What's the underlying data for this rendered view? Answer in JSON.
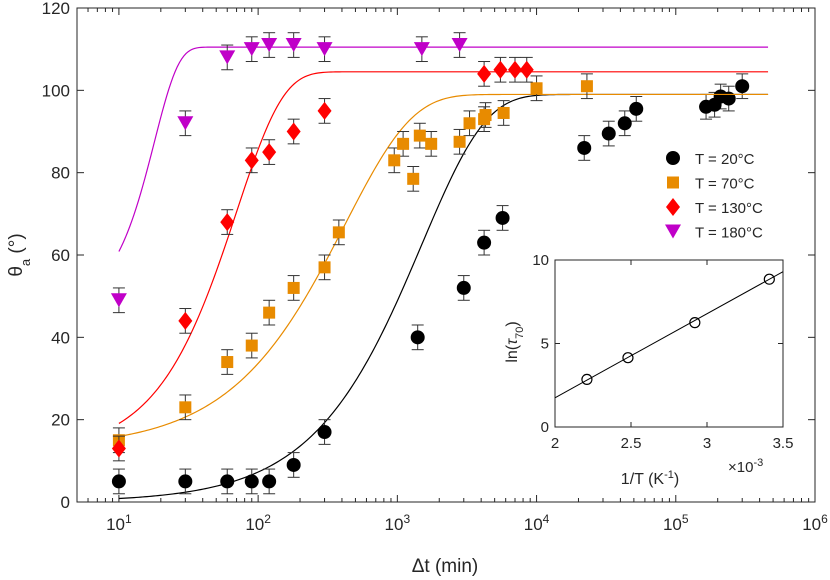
{
  "chart_data": [
    {
      "type": "scatter",
      "xlabel": "Δt (min)",
      "ylabel": "θa (°)",
      "ylabel_main": "θ",
      "ylabel_sub": "a",
      "ylabel_unit": " (°)",
      "xscale": "log",
      "xlim": [
        5,
        1000000
      ],
      "ylim": [
        0,
        120
      ],
      "x_ticks": [
        {
          "value": 10,
          "base": "10",
          "exp": "1"
        },
        {
          "value": 100,
          "base": "10",
          "exp": "2"
        },
        {
          "value": 1000,
          "base": "10",
          "exp": "3"
        },
        {
          "value": 10000,
          "base": "10",
          "exp": "4"
        },
        {
          "value": 100000,
          "base": "10",
          "exp": "5"
        },
        {
          "value": 1000000,
          "base": "10",
          "exp": "6"
        }
      ],
      "y_ticks": [
        "0",
        "20",
        "40",
        "60",
        "80",
        "100",
        "120"
      ],
      "grid": false,
      "legend_position": "right",
      "series": [
        {
          "name": "T = 20°C",
          "color": "#000000",
          "marker": "circle",
          "fit": {
            "min": 0,
            "max": 99,
            "tau": 1500,
            "n": 0.95
          },
          "x": [
            10,
            30,
            60,
            90,
            120,
            180,
            300,
            1400,
            3000,
            4200,
            5700,
            22000,
            33000,
            43000,
            52000,
            165000,
            190000,
            210000,
            240000,
            300000
          ],
          "y": [
            5,
            5,
            5,
            5,
            5,
            9,
            17,
            40,
            52,
            63,
            69,
            86,
            89.5,
            92,
            95.5,
            96,
            96.5,
            98.5,
            98,
            101
          ],
          "err": [
            3,
            3,
            3,
            3,
            3,
            3,
            3,
            3,
            3,
            3,
            3,
            3,
            3,
            3,
            3,
            3,
            3,
            3,
            3,
            3
          ]
        },
        {
          "name": "T = 70°C",
          "color": "#E88B00",
          "marker": "square",
          "fit": {
            "min": 13,
            "max": 99,
            "tau": 420,
            "n": 0.9
          },
          "x": [
            10,
            30,
            60,
            90,
            120,
            180,
            300,
            380,
            950,
            1100,
            1300,
            1450,
            1750,
            2800,
            3300,
            4200,
            4300,
            5800,
            10000,
            23000
          ],
          "y": [
            15,
            23,
            34,
            38,
            46,
            52,
            57,
            65.5,
            83,
            87,
            78.5,
            89,
            87,
            87.5,
            92,
            93,
            94,
            94.5,
            100.5,
            101
          ],
          "err": [
            3,
            3,
            3,
            3,
            3,
            3,
            3,
            3,
            3,
            3,
            3,
            3,
            3,
            3,
            3,
            3,
            3,
            3,
            3,
            3
          ]
        },
        {
          "name": "T = 130°C",
          "color": "#FF0000",
          "marker": "diamond",
          "fit": {
            "min": 12,
            "max": 104.5,
            "tau": 70,
            "n": 1.3
          },
          "x": [
            10,
            30,
            60,
            90,
            120,
            180,
            300,
            4200,
            5500,
            7000,
            8500
          ],
          "y": [
            13,
            44,
            68,
            83,
            85,
            90,
            95,
            104,
            105,
            105,
            105
          ],
          "err": [
            3,
            3,
            3,
            3,
            3,
            3,
            3,
            3,
            3,
            3,
            3
          ]
        },
        {
          "name": "T = 180°C",
          "color": "#C000C8",
          "marker": "triangle-down",
          "fit": {
            "min": 48,
            "max": 110.5,
            "tau": 18,
            "n": 2.5
          },
          "x": [
            10,
            30,
            60,
            90,
            120,
            180,
            300,
            1500,
            2800
          ],
          "y": [
            49,
            92,
            108,
            110,
            111,
            111,
            110,
            110,
            111
          ],
          "err": [
            3,
            3,
            3,
            3,
            3,
            3,
            3,
            3,
            3
          ]
        }
      ]
    },
    {
      "type": "scatter",
      "inset": true,
      "xlabel_main": "1/T (K",
      "xlabel_sup": "-1",
      "xlabel_end": ")",
      "ylabel_main": "ln(",
      "ylabel_greek": "τ",
      "ylabel_sub": "70",
      "ylabel_end": ")",
      "xlim": [
        2,
        3.5
      ],
      "ylim": [
        0,
        10
      ],
      "x_ticks": [
        "2",
        "2.5",
        "3",
        "3.5"
      ],
      "y_ticks": [
        "0",
        "5",
        "10"
      ],
      "x_multiplier_base": "×10",
      "x_multiplier_exp": "-3",
      "marker": "open-circle",
      "points_x": [
        2.21,
        2.48,
        2.92,
        3.41
      ],
      "points_y": [
        2.85,
        4.15,
        6.25,
        8.85
      ],
      "fit_x": [
        2.0,
        3.5
      ],
      "fit_y": [
        1.75,
        9.3
      ]
    }
  ]
}
